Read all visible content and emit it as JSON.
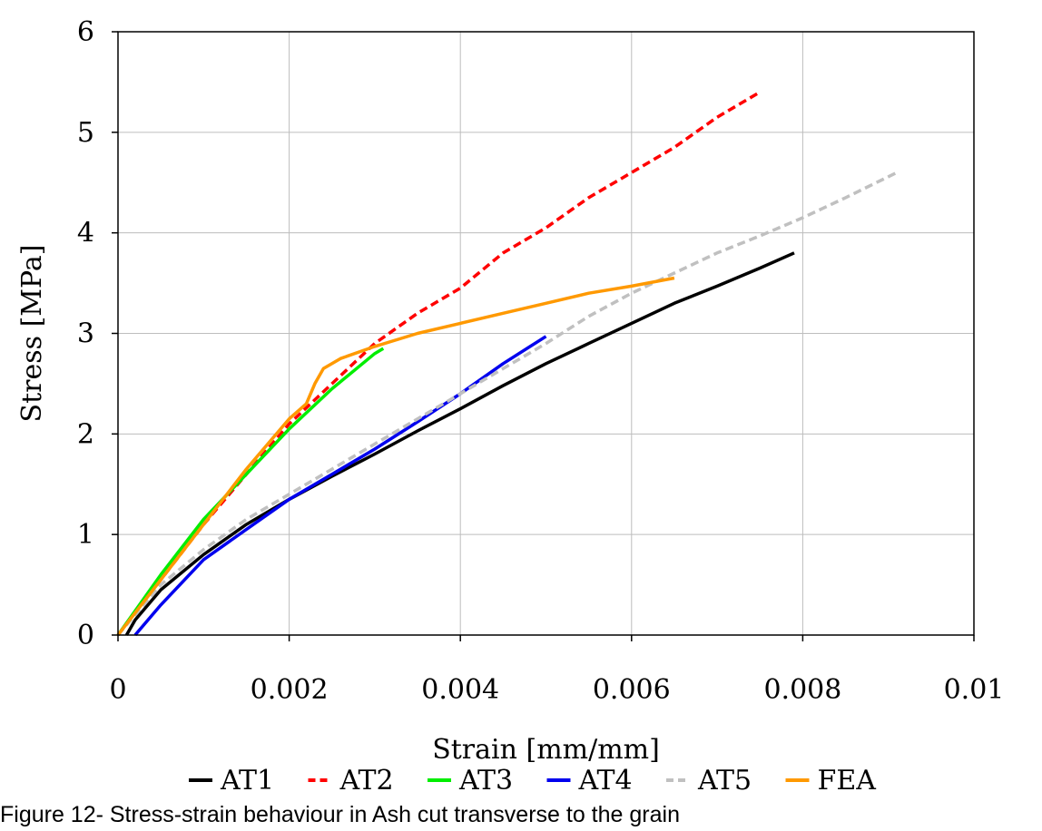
{
  "caption": "Figure 12- Stress-strain behaviour in Ash cut transverse to the grain",
  "chart_data": {
    "type": "line",
    "title": "",
    "xlabel": "Strain [mm/mm]",
    "ylabel": "Stress [MPa]",
    "xlim": [
      0,
      0.01
    ],
    "ylim": [
      0,
      6
    ],
    "x_ticks": [
      0,
      0.002,
      0.004,
      0.006,
      0.008,
      0.01
    ],
    "x_tick_labels": [
      "0",
      "0.002",
      "0.004",
      "0.006",
      "0.008",
      "0.01"
    ],
    "y_ticks": [
      0,
      1,
      2,
      3,
      4,
      5,
      6
    ],
    "y_tick_labels": [
      "0",
      "1",
      "2",
      "3",
      "4",
      "5",
      "6"
    ],
    "grid": true,
    "legend_position": "bottom",
    "series": [
      {
        "name": "AT1",
        "color": "#000000",
        "dash": "solid",
        "points": [
          [
            0.0001,
            0
          ],
          [
            0.0002,
            0.15
          ],
          [
            0.0005,
            0.45
          ],
          [
            0.001,
            0.8
          ],
          [
            0.0015,
            1.1
          ],
          [
            0.002,
            1.35
          ],
          [
            0.0025,
            1.58
          ],
          [
            0.003,
            1.8
          ],
          [
            0.0035,
            2.03
          ],
          [
            0.004,
            2.25
          ],
          [
            0.0045,
            2.48
          ],
          [
            0.005,
            2.7
          ],
          [
            0.0055,
            2.9
          ],
          [
            0.006,
            3.1
          ],
          [
            0.0065,
            3.3
          ],
          [
            0.007,
            3.47
          ],
          [
            0.0075,
            3.65
          ],
          [
            0.0079,
            3.8
          ]
        ]
      },
      {
        "name": "AT2",
        "color": "#ff0000",
        "dash": "dashed",
        "points": [
          [
            0,
            0
          ],
          [
            0.0005,
            0.55
          ],
          [
            0.001,
            1.1
          ],
          [
            0.0015,
            1.6
          ],
          [
            0.002,
            2.1
          ],
          [
            0.0025,
            2.5
          ],
          [
            0.003,
            2.9
          ],
          [
            0.0035,
            3.2
          ],
          [
            0.004,
            3.45
          ],
          [
            0.0045,
            3.8
          ],
          [
            0.005,
            4.05
          ],
          [
            0.0055,
            4.35
          ],
          [
            0.006,
            4.6
          ],
          [
            0.0065,
            4.85
          ],
          [
            0.007,
            5.15
          ],
          [
            0.0075,
            5.4
          ]
        ]
      },
      {
        "name": "AT3",
        "color": "#00ee00",
        "dash": "solid",
        "points": [
          [
            0,
            0
          ],
          [
            0.0005,
            0.6
          ],
          [
            0.001,
            1.15
          ],
          [
            0.0015,
            1.6
          ],
          [
            0.002,
            2.05
          ],
          [
            0.0025,
            2.45
          ],
          [
            0.003,
            2.8
          ],
          [
            0.0031,
            2.85
          ]
        ]
      },
      {
        "name": "AT4",
        "color": "#0000ee",
        "dash": "solid",
        "points": [
          [
            0.0002,
            0
          ],
          [
            0.0005,
            0.3
          ],
          [
            0.001,
            0.75
          ],
          [
            0.0015,
            1.05
          ],
          [
            0.002,
            1.35
          ],
          [
            0.0025,
            1.6
          ],
          [
            0.003,
            1.85
          ],
          [
            0.0035,
            2.12
          ],
          [
            0.004,
            2.4
          ],
          [
            0.0045,
            2.7
          ],
          [
            0.005,
            2.97
          ]
        ]
      },
      {
        "name": "AT5",
        "color": "#c0c0c0",
        "dash": "dashed",
        "points": [
          [
            0,
            0
          ],
          [
            0.0005,
            0.5
          ],
          [
            0.001,
            0.85
          ],
          [
            0.0015,
            1.15
          ],
          [
            0.002,
            1.4
          ],
          [
            0.0025,
            1.65
          ],
          [
            0.003,
            1.9
          ],
          [
            0.0035,
            2.15
          ],
          [
            0.004,
            2.4
          ],
          [
            0.0045,
            2.65
          ],
          [
            0.005,
            2.9
          ],
          [
            0.0055,
            3.17
          ],
          [
            0.006,
            3.4
          ],
          [
            0.0065,
            3.6
          ],
          [
            0.007,
            3.8
          ],
          [
            0.0075,
            3.97
          ],
          [
            0.008,
            4.15
          ],
          [
            0.0085,
            4.35
          ],
          [
            0.0091,
            4.6
          ]
        ]
      },
      {
        "name": "FEA",
        "color": "#ff9900",
        "dash": "solid",
        "points": [
          [
            0,
            0
          ],
          [
            0.0005,
            0.55
          ],
          [
            0.001,
            1.1
          ],
          [
            0.0015,
            1.65
          ],
          [
            0.002,
            2.15
          ],
          [
            0.0022,
            2.3
          ],
          [
            0.0023,
            2.5
          ],
          [
            0.0024,
            2.65
          ],
          [
            0.0026,
            2.75
          ],
          [
            0.003,
            2.87
          ],
          [
            0.0035,
            3.0
          ],
          [
            0.004,
            3.1
          ],
          [
            0.0045,
            3.2
          ],
          [
            0.005,
            3.3
          ],
          [
            0.0055,
            3.4
          ],
          [
            0.006,
            3.47
          ],
          [
            0.0065,
            3.55
          ]
        ]
      }
    ]
  }
}
